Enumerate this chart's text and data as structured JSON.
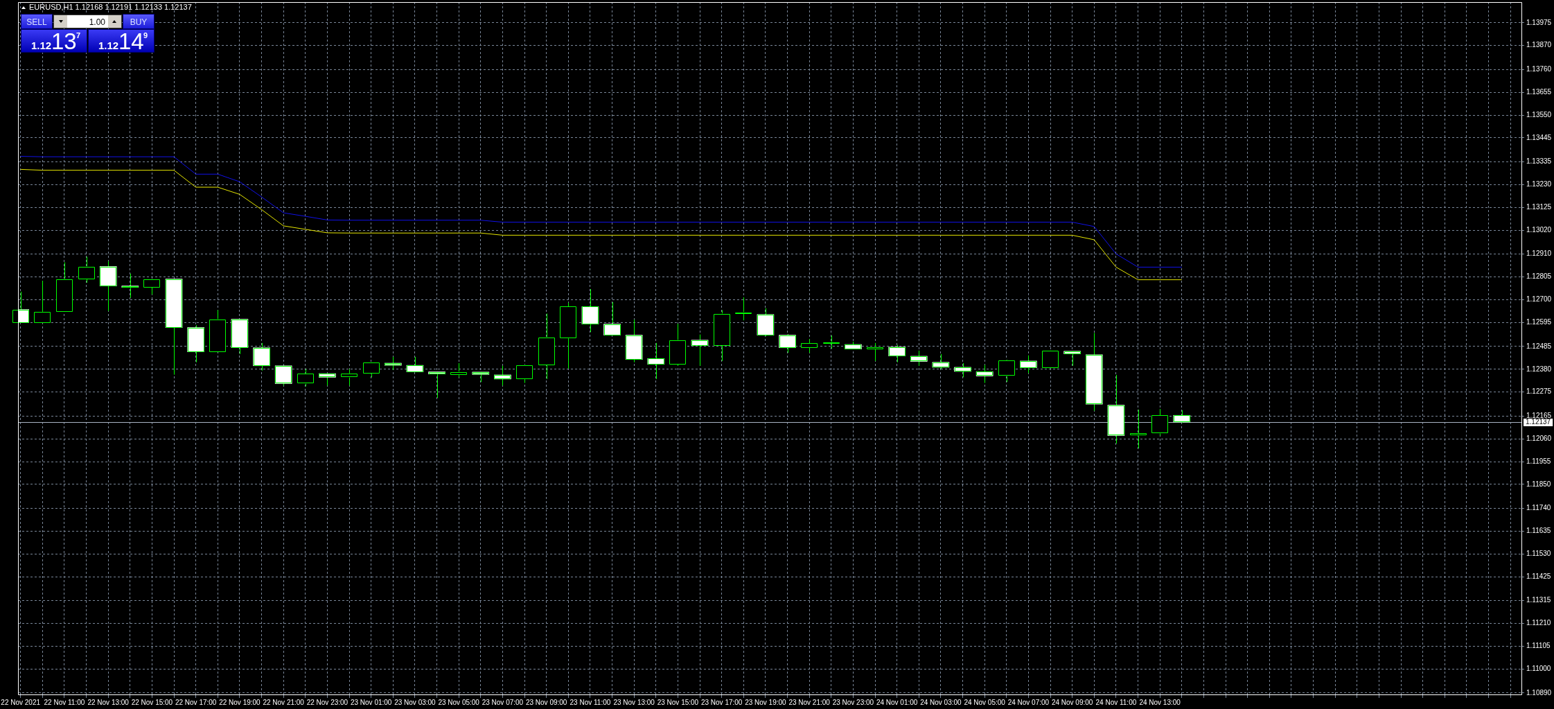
{
  "chart_data": {
    "type": "candlestick",
    "title": "EURUSD,H1 1.12168 1.12191 1.12133 1.12137",
    "x": [
      "2021-11-22T09:00",
      "2021-11-22T10:00",
      "2021-11-22T11:00",
      "2021-11-22T12:00",
      "2021-11-22T13:00",
      "2021-11-22T14:00",
      "2021-11-22T15:00",
      "2021-11-22T16:00",
      "2021-11-22T17:00",
      "2021-11-22T18:00",
      "2021-11-22T19:00",
      "2021-11-22T20:00",
      "2021-11-22T21:00",
      "2021-11-22T22:00",
      "2021-11-22T23:00",
      "2021-11-23T00:00",
      "2021-11-23T01:00",
      "2021-11-23T02:00",
      "2021-11-23T03:00",
      "2021-11-23T04:00",
      "2021-11-23T05:00",
      "2021-11-23T06:00",
      "2021-11-23T07:00",
      "2021-11-23T08:00",
      "2021-11-23T09:00",
      "2021-11-23T10:00",
      "2021-11-23T11:00",
      "2021-11-23T12:00",
      "2021-11-23T13:00",
      "2021-11-23T14:00",
      "2021-11-23T15:00",
      "2021-11-23T16:00",
      "2021-11-23T17:00",
      "2021-11-23T18:00",
      "2021-11-23T19:00",
      "2021-11-23T20:00",
      "2021-11-23T21:00",
      "2021-11-23T22:00",
      "2021-11-23T23:00",
      "2021-11-24T00:00",
      "2021-11-24T01:00",
      "2021-11-24T02:00",
      "2021-11-24T03:00",
      "2021-11-24T04:00",
      "2021-11-24T05:00",
      "2021-11-24T06:00",
      "2021-11-24T07:00",
      "2021-11-24T08:00",
      "2021-11-24T09:00",
      "2021-11-24T10:00",
      "2021-11-24T11:00",
      "2021-11-24T12:00",
      "2021-11-24T13:00",
      "2021-11-24T14:00"
    ],
    "ohlc": [
      [
        1.12655,
        1.12737,
        1.12594,
        1.12594
      ],
      [
        1.12594,
        1.12787,
        1.12594,
        1.12644
      ],
      [
        1.12644,
        1.12872,
        1.12644,
        1.12795
      ],
      [
        1.12795,
        1.12898,
        1.12778,
        1.12853
      ],
      [
        1.12853,
        1.12877,
        1.12648,
        1.12763
      ],
      [
        1.12763,
        1.1282,
        1.12709,
        1.12757
      ],
      [
        1.12757,
        1.12795,
        1.12724,
        1.12795
      ],
      [
        1.12795,
        1.12795,
        1.12355,
        1.12572
      ],
      [
        1.12572,
        1.12583,
        1.12412,
        1.1246
      ],
      [
        1.1246,
        1.12652,
        1.1246,
        1.1261
      ],
      [
        1.1261,
        1.1261,
        1.1245,
        1.12479
      ],
      [
        1.12479,
        1.12501,
        1.12374,
        1.12396
      ],
      [
        1.12396,
        1.12396,
        1.12305,
        1.12314
      ],
      [
        1.12314,
        1.12381,
        1.12301,
        1.1236
      ],
      [
        1.1236,
        1.1236,
        1.12305,
        1.12343
      ],
      [
        1.12343,
        1.12381,
        1.12305,
        1.1236
      ],
      [
        1.1236,
        1.12412,
        1.12343,
        1.12412
      ],
      [
        1.12408,
        1.12437,
        1.12377,
        1.12398
      ],
      [
        1.12398,
        1.12437,
        1.12368,
        1.12368
      ],
      [
        1.12368,
        1.12368,
        1.12248,
        1.12358
      ],
      [
        1.12354,
        1.12408,
        1.12343,
        1.12368
      ],
      [
        1.12367,
        1.12367,
        1.12321,
        1.12356
      ],
      [
        1.12354,
        1.12396,
        1.12305,
        1.12335
      ],
      [
        1.12335,
        1.124,
        1.12317,
        1.124
      ],
      [
        1.124,
        1.12636,
        1.12335,
        1.12527
      ],
      [
        1.12523,
        1.12686,
        1.12383,
        1.12668
      ],
      [
        1.12668,
        1.12749,
        1.12551,
        1.12588
      ],
      [
        1.12588,
        1.12689,
        1.12537,
        1.12537
      ],
      [
        1.12537,
        1.12608,
        1.12412,
        1.12425
      ],
      [
        1.12429,
        1.12501,
        1.12335,
        1.12403
      ],
      [
        1.12403,
        1.12589,
        1.12396,
        1.12514
      ],
      [
        1.12514,
        1.1254,
        1.12396,
        1.12489
      ],
      [
        1.12489,
        1.12652,
        1.12418,
        1.12636
      ],
      [
        1.12636,
        1.12711,
        1.12605,
        1.12636
      ],
      [
        1.12632,
        1.12661,
        1.12532,
        1.12537
      ],
      [
        1.12537,
        1.12542,
        1.12456,
        1.12479
      ],
      [
        1.12479,
        1.12519,
        1.12456,
        1.12499
      ],
      [
        1.12498,
        1.12535,
        1.12475,
        1.12498
      ],
      [
        1.12494,
        1.12507,
        1.12473,
        1.12473
      ],
      [
        1.12473,
        1.12501,
        1.12418,
        1.12482
      ],
      [
        1.12482,
        1.12492,
        1.12412,
        1.12441
      ],
      [
        1.1244,
        1.12466,
        1.12396,
        1.12416
      ],
      [
        1.12412,
        1.1245,
        1.12381,
        1.12389
      ],
      [
        1.12389,
        1.12408,
        1.12343,
        1.1237
      ],
      [
        1.12369,
        1.124,
        1.12317,
        1.12349
      ],
      [
        1.12349,
        1.12425,
        1.12321,
        1.12422
      ],
      [
        1.12418,
        1.12444,
        1.12362,
        1.12387
      ],
      [
        1.12387,
        1.12466,
        1.12387,
        1.12464
      ],
      [
        1.12463,
        1.12463,
        1.12396,
        1.12451
      ],
      [
        1.12447,
        1.12547,
        1.12189,
        1.12219
      ],
      [
        1.12215,
        1.12354,
        1.12038,
        1.12075
      ],
      [
        1.12075,
        1.12194,
        1.12016,
        1.12085
      ],
      [
        1.12085,
        1.12197,
        1.12075,
        1.12168
      ],
      [
        1.12168,
        1.12191,
        1.12133,
        1.12137
      ]
    ],
    "color": "#00ff00",
    "colors": [
      "#ffffff",
      "#000000",
      "#000000",
      "#000000",
      "#ffffff",
      "#ffffff",
      "#000000",
      "#ffffff",
      "#ffffff",
      "#000000",
      "#ffffff",
      "#ffffff",
      "#ffffff",
      "#000000",
      "#ffffff",
      "#000000",
      "#000000",
      "#ffffff",
      "#ffffff",
      "#ffffff",
      "#000000",
      "#ffffff",
      "#ffffff",
      "#000000",
      "#000000",
      "#000000",
      "#ffffff",
      "#ffffff",
      "#ffffff",
      "#ffffff",
      "#000000",
      "#ffffff",
      "#000000",
      "#000000",
      "#ffffff",
      "#ffffff",
      "#000000",
      "#000000",
      "#ffffff",
      "#000000",
      "#ffffff",
      "#ffffff",
      "#ffffff",
      "#ffffff",
      "#ffffff",
      "#000000",
      "#ffffff",
      "#000000",
      "#ffffff",
      "#ffffff",
      "#ffffff",
      "#000000",
      "#000000",
      "#ffffff"
    ],
    "series": [
      {
        "type": "line",
        "color": "#1010e8",
        "values": [
          1.1336,
          1.13358,
          1.13358,
          1.13358,
          1.13358,
          1.13358,
          1.13358,
          1.13358,
          1.13278,
          1.13278,
          1.13243,
          1.13173,
          1.131,
          1.13084,
          1.13067,
          1.13066,
          1.13066,
          1.13066,
          1.13066,
          1.13066,
          1.13066,
          1.13066,
          1.13057,
          1.13057,
          1.13057,
          1.13057,
          1.13057,
          1.13057,
          1.13057,
          1.13057,
          1.13057,
          1.13057,
          1.13057,
          1.13057,
          1.13057,
          1.13057,
          1.13057,
          1.13057,
          1.13057,
          1.13057,
          1.13057,
          1.13057,
          1.13057,
          1.13057,
          1.13057,
          1.13057,
          1.13057,
          1.13057,
          1.13057,
          1.13037,
          1.12911,
          1.1285,
          1.1285,
          1.1285
        ]
      },
      {
        "type": "line",
        "color": "#e6e600",
        "values": [
          1.133,
          1.13296,
          1.13296,
          1.13296,
          1.13296,
          1.13296,
          1.13296,
          1.13296,
          1.13218,
          1.13218,
          1.13185,
          1.13115,
          1.1304,
          1.13024,
          1.13008,
          1.13007,
          1.13007,
          1.13007,
          1.13007,
          1.13007,
          1.13007,
          1.13007,
          1.12997,
          1.12997,
          1.12997,
          1.12997,
          1.12997,
          1.12997,
          1.12997,
          1.12997,
          1.12997,
          1.12997,
          1.12997,
          1.12997,
          1.12997,
          1.12997,
          1.12997,
          1.12997,
          1.12997,
          1.12997,
          1.12997,
          1.12997,
          1.12997,
          1.12997,
          1.12997,
          1.12997,
          1.12997,
          1.12997,
          1.12997,
          1.12976,
          1.1285,
          1.12792,
          1.12792,
          1.12792
        ]
      }
    ],
    "xlim": [
      "2021-11-22T08:53",
      "2021-11-25T05:32"
    ],
    "xticks": [
      {
        "value": "2021-11-22T09:00",
        "label": "22 Nov 2021"
      },
      {
        "value": "2021-11-22T10:00",
        "label": null
      },
      {
        "value": "2021-11-22T11:00",
        "label": "22 Nov 11:00"
      },
      {
        "value": "2021-11-22T12:00",
        "label": null
      },
      {
        "value": "2021-11-22T13:00",
        "label": "22 Nov 13:00"
      },
      {
        "value": "2021-11-22T14:00",
        "label": null
      },
      {
        "value": "2021-11-22T15:00",
        "label": "22 Nov 15:00"
      },
      {
        "value": "2021-11-22T16:00",
        "label": null
      },
      {
        "value": "2021-11-22T17:00",
        "label": "22 Nov 17:00"
      },
      {
        "value": "2021-11-22T18:00",
        "label": null
      },
      {
        "value": "2021-11-22T19:00",
        "label": "22 Nov 19:00"
      },
      {
        "value": "2021-11-22T20:00",
        "label": null
      },
      {
        "value": "2021-11-22T21:00",
        "label": "22 Nov 21:00"
      },
      {
        "value": "2021-11-22T22:00",
        "label": null
      },
      {
        "value": "2021-11-22T23:00",
        "label": "22 Nov 23:00"
      },
      {
        "value": "2021-11-23T00:00",
        "label": null
      },
      {
        "value": "2021-11-23T01:00",
        "label": "23 Nov 01:00"
      },
      {
        "value": "2021-11-23T02:00",
        "label": null
      },
      {
        "value": "2021-11-23T03:00",
        "label": "23 Nov 03:00"
      },
      {
        "value": "2021-11-23T04:00",
        "label": null
      },
      {
        "value": "2021-11-23T05:00",
        "label": "23 Nov 05:00"
      },
      {
        "value": "2021-11-23T06:00",
        "label": null
      },
      {
        "value": "2021-11-23T07:00",
        "label": "23 Nov 07:00"
      },
      {
        "value": "2021-11-23T08:00",
        "label": null
      },
      {
        "value": "2021-11-23T09:00",
        "label": "23 Nov 09:00"
      },
      {
        "value": "2021-11-23T10:00",
        "label": null
      },
      {
        "value": "2021-11-23T11:00",
        "label": "23 Nov 11:00"
      },
      {
        "value": "2021-11-23T12:00",
        "label": null
      },
      {
        "value": "2021-11-23T13:00",
        "label": "23 Nov 13:00"
      },
      {
        "value": "2021-11-23T14:00",
        "label": null
      },
      {
        "value": "2021-11-23T15:00",
        "label": "23 Nov 15:00"
      },
      {
        "value": "2021-11-23T16:00",
        "label": null
      },
      {
        "value": "2021-11-23T17:00",
        "label": "23 Nov 17:00"
      },
      {
        "value": "2021-11-23T18:00",
        "label": null
      },
      {
        "value": "2021-11-23T19:00",
        "label": "23 Nov 19:00"
      },
      {
        "value": "2021-11-23T20:00",
        "label": null
      },
      {
        "value": "2021-11-23T21:00",
        "label": "23 Nov 21:00"
      },
      {
        "value": "2021-11-23T22:00",
        "label": null
      },
      {
        "value": "2021-11-23T23:00",
        "label": "23 Nov 23:00"
      },
      {
        "value": "2021-11-24T00:00",
        "label": null
      },
      {
        "value": "2021-11-24T01:00",
        "label": "24 Nov 01:00"
      },
      {
        "value": "2021-11-24T02:00",
        "label": null
      },
      {
        "value": "2021-11-24T03:00",
        "label": "24 Nov 03:00"
      },
      {
        "value": "2021-11-24T04:00",
        "label": null
      },
      {
        "value": "2021-11-24T05:00",
        "label": "24 Nov 05:00"
      },
      {
        "value": "2021-11-24T06:00",
        "label": null
      },
      {
        "value": "2021-11-24T07:00",
        "label": "24 Nov 07:00"
      },
      {
        "value": "2021-11-24T08:00",
        "label": null
      },
      {
        "value": "2021-11-24T09:00",
        "label": "24 Nov 09:00"
      },
      {
        "value": "2021-11-24T10:00",
        "label": null
      },
      {
        "value": "2021-11-24T11:00",
        "label": "24 Nov 11:00"
      },
      {
        "value": "2021-11-24T12:00",
        "label": null
      },
      {
        "value": "2021-11-24T13:00",
        "label": "24 Nov 13:00"
      },
      {
        "value": "2021-11-24T14:00",
        "label": null
      },
      {
        "value": "2021-11-24T15:00",
        "label": null
      },
      {
        "value": "2021-11-24T16:00",
        "label": null
      },
      {
        "value": "2021-11-24T17:00",
        "label": null
      },
      {
        "value": "2021-11-24T18:00",
        "label": null
      },
      {
        "value": "2021-11-24T19:00",
        "label": null
      },
      {
        "value": "2021-11-24T20:00",
        "label": null
      },
      {
        "value": "2021-11-24T21:00",
        "label": null
      },
      {
        "value": "2021-11-24T22:00",
        "label": null
      },
      {
        "value": "2021-11-24T23:00",
        "label": null
      },
      {
        "value": "2021-11-25T00:00",
        "label": null
      },
      {
        "value": "2021-11-25T01:00",
        "label": null
      },
      {
        "value": "2021-11-25T02:00",
        "label": null
      },
      {
        "value": "2021-11-25T03:00",
        "label": null
      },
      {
        "value": "2021-11-25T04:00",
        "label": null
      },
      {
        "value": "2021-11-25T05:00",
        "label": null
      }
    ],
    "ylim": [
      1.1088,
      1.1407
    ],
    "yticks": [
      {
        "value": 1.1089,
        "label": "1.10890"
      },
      {
        "value": 1.11,
        "label": "1.11000"
      },
      1.11105,
      {
        "value": 1.1121,
        "label": "1.11210"
      },
      1.11315,
      1.11425,
      {
        "value": 1.1153,
        "label": "1.11530"
      },
      1.11635,
      {
        "value": 1.1174,
        "label": "1.11740"
      },
      {
        "value": 1.1185,
        "label": "1.11850"
      },
      1.11955,
      {
        "value": 1.1206,
        "label": "1.12060"
      },
      1.12165,
      1.12275,
      {
        "value": 1.1238,
        "label": "1.12380"
      },
      1.12485,
      1.12595,
      {
        "value": 1.127,
        "label": "1.12700"
      },
      1.12805,
      {
        "value": 1.1291,
        "label": "1.12910"
      },
      {
        "value": 1.1302,
        "label": "1.13020"
      },
      1.13125,
      {
        "value": 1.1323,
        "label": "1.13230"
      },
      1.13335,
      1.13445,
      {
        "value": 1.1355,
        "label": "1.13550"
      },
      1.13655,
      {
        "value": 1.1376,
        "label": "1.13760"
      },
      {
        "value": 1.1387,
        "label": "1.13870"
      },
      1.13975
    ],
    "grid": true,
    "marker": "none",
    "ref_lines": [
      {
        "axis": "y",
        "value": 1.12137,
        "label": "1.12137",
        "color": "#aab4c4"
      }
    ],
    "annotations": [
      "SELL",
      "1.00",
      "BUY",
      "1.12",
      "13",
      "7",
      "1.12",
      "14",
      "9"
    ]
  }
}
